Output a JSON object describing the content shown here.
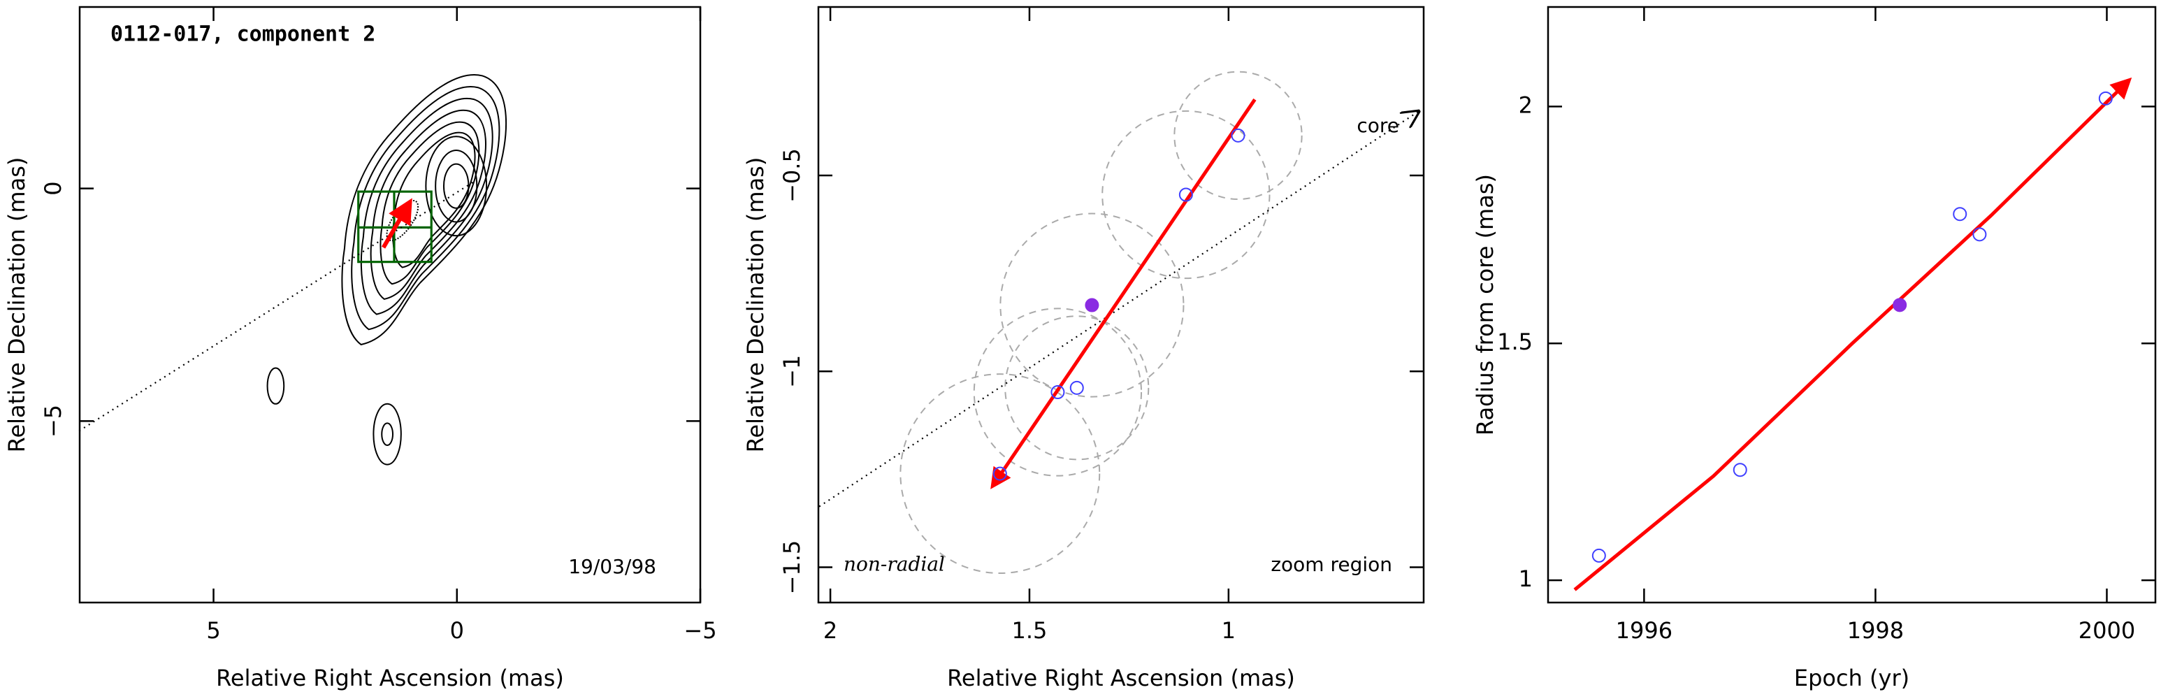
{
  "chart_data": [
    {
      "type": "contour",
      "title": "0112-017, component 2",
      "annotations": [
        "19/03/98"
      ],
      "xlabel": "Relative Right Ascension (mas)",
      "ylabel": "Relative Declination (mas)",
      "xlim": [
        7.75,
        -5
      ],
      "ylim": [
        -8.9,
        3.9
      ],
      "xticks": [
        5,
        0,
        {
          "value": -5,
          "label": "−5"
        }
      ],
      "yticks": [
        0,
        {
          "value": -5,
          "label": "−5"
        }
      ],
      "lines": [
        {
          "style": "dotted",
          "color": "#000000",
          "x": [
            7.76,
            -0.4
          ],
          "values": [
            -5.21,
            0.18
          ]
        },
        {
          "style": "arrow",
          "color": "#ff0000",
          "x": [
            1.51,
            0.97
          ],
          "values": [
            -1.27,
            -0.3
          ]
        }
      ]
    },
    {
      "type": "scatter",
      "annotations": [
        "core",
        "non-radial",
        "zoom region"
      ],
      "xlabel": "Relative Right Ascension (mas)",
      "ylabel": "Relative Declination (mas)",
      "xlim": [
        2.03,
        0.51
      ],
      "ylim": [
        -1.59,
        -0.07
      ],
      "xticks": [
        2,
        1.5,
        1
      ],
      "yticks": [
        {
          "value": -0.5,
          "label": "−0.5"
        },
        {
          "value": -1,
          "label": "−1"
        },
        {
          "value": -1.5,
          "label": "−1.5"
        }
      ],
      "series": [
        {
          "marker": "open",
          "color": "#4040ff",
          "x": [
            0.976,
            1.107,
            1.381,
            1.429,
            1.574
          ],
          "values": [
            -0.398,
            -0.549,
            -1.042,
            -1.053,
            -1.261
          ],
          "sizes": [
            0.16,
            0.21,
            0.18,
            0.21,
            0.25
          ]
        },
        {
          "marker": "filled",
          "color": "#8a2be2",
          "x": [
            1.343
          ],
          "values": [
            -0.831
          ],
          "sizes": [
            0.23
          ]
        }
      ],
      "lines": [
        {
          "style": "dotted-arrow",
          "color": "#000000",
          "x": [
            2.028,
            0.519
          ],
          "values": [
            -1.345,
            -0.334
          ]
        },
        {
          "style": "arrow",
          "color": "#ff0000",
          "x": [
            0.934,
            1.592
          ],
          "values": [
            -0.306,
            -1.292
          ]
        }
      ]
    },
    {
      "type": "scatter",
      "xlabel": "Epoch (yr)",
      "ylabel": "Radius from core (mas)",
      "xlim": [
        1995.17,
        2000.42
      ],
      "ylim": [
        0.953,
        2.21
      ],
      "xticks": [
        1996,
        1998,
        2000
      ],
      "yticks": [
        1,
        1.5,
        2
      ],
      "series": [
        {
          "marker": "open",
          "color": "#4040ff",
          "x": [
            1995.61,
            1996.83,
            1998.73,
            1998.9,
            1999.99
          ],
          "values": [
            1.052,
            1.233,
            1.773,
            1.73,
            2.017
          ]
        },
        {
          "marker": "filled",
          "color": "#8a2be2",
          "x": [
            1998.21
          ],
          "values": [
            1.581
          ]
        }
      ],
      "lines": [
        {
          "style": "arrow",
          "color": "#ff0000",
          "x": [
            1995.4,
            1996.6,
            1997.8,
            1999.0,
            2000.19
          ],
          "values": [
            0.98,
            1.22,
            1.5,
            1.77,
            2.055
          ]
        }
      ]
    }
  ]
}
